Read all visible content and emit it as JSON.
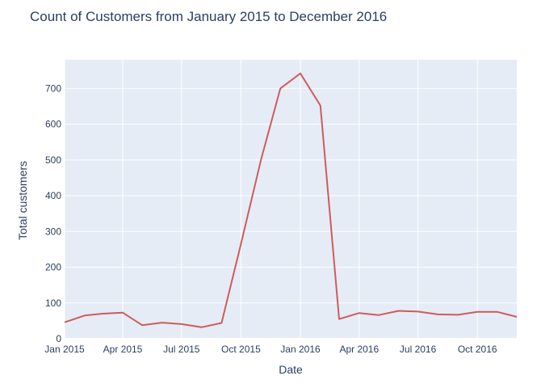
{
  "chart_data": {
    "type": "line",
    "title": "Count of Customers from January 2015 to December 2016",
    "xlabel": "Date",
    "ylabel": "Total customers",
    "x": [
      "2015-01",
      "2015-02",
      "2015-03",
      "2015-04",
      "2015-05",
      "2015-06",
      "2015-07",
      "2015-08",
      "2015-09",
      "2015-10",
      "2015-11",
      "2015-12",
      "2016-01",
      "2016-02",
      "2016-03",
      "2016-04",
      "2016-05",
      "2016-06",
      "2016-07",
      "2016-08",
      "2016-09",
      "2016-10",
      "2016-11",
      "2016-12"
    ],
    "series": [
      {
        "name": "",
        "color": "#cd5c5c",
        "values": [
          46,
          65,
          70,
          73,
          38,
          45,
          41,
          32,
          44,
          265,
          500,
          700,
          742,
          652,
          55,
          72,
          66,
          78,
          76,
          68,
          67,
          75,
          75,
          61
        ]
      }
    ],
    "xlim": [
      "2015-01-01",
      "2016-12-01"
    ],
    "ylim": [
      0,
      780
    ],
    "xticks": [
      {
        "date": "2015-01-01",
        "label": "Jan 2015"
      },
      {
        "date": "2015-04-01",
        "label": "Apr 2015"
      },
      {
        "date": "2015-07-01",
        "label": "Jul 2015"
      },
      {
        "date": "2015-10-01",
        "label": "Oct 2015"
      },
      {
        "date": "2016-01-01",
        "label": "Jan 2016"
      },
      {
        "date": "2016-04-01",
        "label": "Apr 2016"
      },
      {
        "date": "2016-07-01",
        "label": "Jul 2016"
      },
      {
        "date": "2016-10-01",
        "label": "Oct 2016"
      }
    ],
    "yticks": [
      0,
      100,
      200,
      300,
      400,
      500,
      600,
      700
    ],
    "grid": true,
    "legend": "none"
  }
}
